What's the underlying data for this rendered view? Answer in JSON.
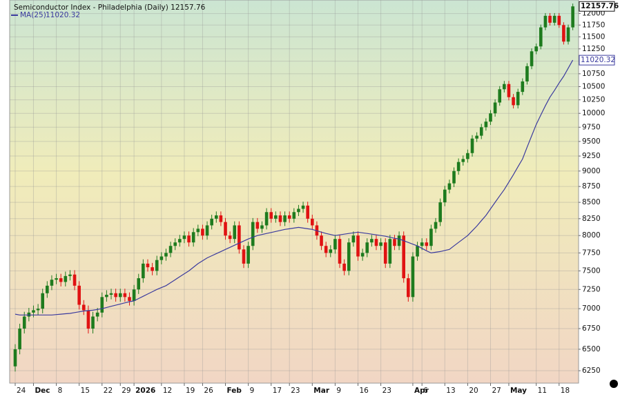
{
  "chart_data": {
    "type": "candlestick",
    "title": "Semiconductor Index - Philadelphia (Daily) 12157.76",
    "log_scale": true,
    "grid": true,
    "ylim": [
      6110,
      12300
    ],
    "yticks": [
      6250,
      6500,
      6750,
      7000,
      7250,
      7500,
      7750,
      8000,
      8250,
      8500,
      8750,
      9000,
      9250,
      9500,
      9750,
      10000,
      10250,
      10500,
      10750,
      11000,
      11250,
      11500,
      11750,
      12000
    ],
    "categories": [
      "24",
      null,
      null,
      null,
      "Dec",
      null,
      null,
      null,
      null,
      "8",
      null,
      null,
      null,
      null,
      "15",
      null,
      null,
      null,
      null,
      "22",
      null,
      null,
      null,
      "29",
      null,
      null,
      "2026",
      null,
      null,
      null,
      null,
      null,
      "12",
      null,
      null,
      null,
      null,
      "19",
      null,
      null,
      null,
      "26",
      null,
      null,
      null,
      null,
      "Feb",
      null,
      null,
      null,
      null,
      "9",
      null,
      null,
      null,
      null,
      "17",
      null,
      null,
      null,
      "23",
      null,
      null,
      null,
      null,
      "Mar",
      null,
      null,
      null,
      null,
      "9",
      null,
      null,
      null,
      null,
      "16",
      null,
      null,
      null,
      null,
      "23",
      null,
      null,
      null,
      null,
      null,
      null,
      "Apr",
      null,
      "6",
      null,
      null,
      null,
      null,
      "13",
      null,
      null,
      null,
      null,
      "20",
      null,
      null,
      null,
      null,
      "27",
      null,
      null,
      null,
      "May",
      null,
      null,
      null,
      null,
      null,
      "11",
      null,
      null,
      null,
      null,
      "18",
      null,
      null,
      null
    ],
    "month_labels": [
      "Dec",
      "2026",
      "Feb",
      "Mar",
      "Apr",
      "May"
    ],
    "up_color": "#1e7b1e",
    "down_color": "#e01212",
    "open": [
      6300,
      6500,
      6750,
      6900,
      6950,
      6980,
      7000,
      7200,
      7300,
      7380,
      7400,
      7350,
      7430,
      7450,
      7300,
      7050,
      6980,
      6750,
      6900,
      6950,
      7150,
      7180,
      7200,
      7150,
      7200,
      7150,
      7100,
      7250,
      7400,
      7600,
      7550,
      7500,
      7650,
      7700,
      7750,
      7850,
      7900,
      7950,
      8000,
      7900,
      8050,
      8100,
      8000,
      8150,
      8250,
      8300,
      8200,
      8000,
      7950,
      8150,
      7800,
      7600,
      7850,
      8200,
      8100,
      8150,
      8350,
      8250,
      8300,
      8200,
      8300,
      8250,
      8350,
      8400,
      8450,
      8250,
      8150,
      8000,
      7850,
      7750,
      7800,
      7950,
      7600,
      7500,
      7900,
      8000,
      7700,
      7750,
      7900,
      7950,
      7850,
      7900,
      7600,
      7950,
      7850,
      8000,
      7400,
      7150,
      7700,
      7850,
      7900,
      7850,
      8100,
      8200,
      8500,
      8700,
      8800,
      9000,
      9150,
      9200,
      9300,
      9550,
      9600,
      9750,
      9850,
      10000,
      10200,
      10450,
      10550,
      10300,
      10150,
      10400,
      10600,
      10900,
      11200,
      11300,
      11700,
      11950,
      11800,
      11950,
      11750,
      11400,
      11700
    ],
    "high": [
      6560,
      6810,
      6960,
      7010,
      7040,
      7060,
      7260,
      7360,
      7440,
      7460,
      7460,
      7490,
      7510,
      7510,
      7360,
      7110,
      7040,
      6960,
      7010,
      7210,
      7240,
      7260,
      7260,
      7260,
      7260,
      7210,
      7310,
      7460,
      7660,
      7660,
      7610,
      7710,
      7760,
      7810,
      7910,
      7960,
      8010,
      8060,
      8060,
      8110,
      8160,
      8160,
      8210,
      8310,
      8360,
      8360,
      8260,
      8060,
      8210,
      8210,
      7860,
      7910,
      8260,
      8260,
      8210,
      8410,
      8410,
      8360,
      8360,
      8360,
      8360,
      8410,
      8460,
      8510,
      8510,
      8310,
      8210,
      8060,
      7910,
      7860,
      8010,
      8010,
      7660,
      7960,
      8060,
      8060,
      7810,
      7960,
      8010,
      8010,
      7960,
      7960,
      8010,
      8010,
      8060,
      8060,
      7460,
      7760,
      7910,
      7960,
      7960,
      8160,
      8260,
      8560,
      8760,
      8860,
      9060,
      9210,
      9260,
      9360,
      9610,
      9660,
      9810,
      9910,
      10060,
      10260,
      10510,
      10610,
      10610,
      10360,
      10460,
      10660,
      10960,
      11260,
      11360,
      11760,
      12010,
      12010,
      12010,
      12010,
      11810,
      11760,
      12220
    ],
    "low": [
      6240,
      6440,
      6690,
      6840,
      6890,
      6920,
      6940,
      7140,
      7240,
      7320,
      7290,
      7290,
      7370,
      7240,
      6990,
      6920,
      6690,
      6690,
      6840,
      6890,
      7090,
      7120,
      7090,
      7090,
      7090,
      7040,
      7040,
      7190,
      7340,
      7490,
      7440,
      7440,
      7590,
      7640,
      7690,
      7790,
      7840,
      7890,
      7840,
      7840,
      7990,
      7940,
      7940,
      8090,
      8190,
      8140,
      7940,
      7890,
      7890,
      7740,
      7540,
      7540,
      7790,
      8040,
      8040,
      8090,
      8190,
      8190,
      8140,
      8140,
      8190,
      8190,
      8290,
      8340,
      8190,
      8090,
      7940,
      7790,
      7690,
      7690,
      7740,
      7540,
      7440,
      7440,
      7840,
      7640,
      7640,
      7690,
      7840,
      7790,
      7790,
      7540,
      7540,
      7790,
      7790,
      7340,
      7090,
      7090,
      7640,
      7790,
      7790,
      7790,
      8040,
      8140,
      8440,
      8640,
      8740,
      8940,
      9090,
      9140,
      9240,
      9490,
      9540,
      9690,
      9790,
      9940,
      10140,
      10390,
      10240,
      10090,
      10090,
      10340,
      10540,
      10840,
      11140,
      11240,
      11640,
      11740,
      11740,
      11690,
      11340,
      11340,
      11640
    ],
    "close": [
      6500,
      6750,
      6900,
      6950,
      6980,
      7000,
      7200,
      7300,
      7380,
      7400,
      7350,
      7430,
      7450,
      7300,
      7050,
      6980,
      6750,
      6900,
      6950,
      7150,
      7180,
      7200,
      7150,
      7200,
      7150,
      7100,
      7250,
      7400,
      7600,
      7550,
      7500,
      7650,
      7700,
      7750,
      7850,
      7900,
      7950,
      8000,
      7900,
      8050,
      8100,
      8000,
      8150,
      8250,
      8300,
      8200,
      8000,
      7950,
      8150,
      7800,
      7600,
      7850,
      8200,
      8100,
      8150,
      8350,
      8250,
      8300,
      8200,
      8300,
      8250,
      8350,
      8400,
      8450,
      8250,
      8150,
      8000,
      7850,
      7750,
      7800,
      7950,
      7600,
      7500,
      7900,
      8000,
      7700,
      7750,
      7900,
      7950,
      7850,
      7900,
      7600,
      7950,
      7850,
      8000,
      7400,
      7150,
      7700,
      7850,
      7900,
      7850,
      8100,
      8200,
      8500,
      8700,
      8800,
      9000,
      9150,
      9200,
      9300,
      9550,
      9600,
      9750,
      9850,
      10000,
      10200,
      10450,
      10550,
      10300,
      10150,
      10400,
      10600,
      10900,
      11200,
      11300,
      11700,
      11950,
      11800,
      11950,
      11750,
      11400,
      11700,
      12157.76
    ],
    "close_value_label": "12157.76",
    "series": [
      {
        "name": "MA(25)",
        "color": "#3a3a9e",
        "value_label": "11020.32",
        "values": [
          6930,
          6920,
          6920,
          6920,
          6920,
          6920,
          6920,
          6920,
          6920,
          6925,
          6930,
          6935,
          6940,
          6950,
          6960,
          6970,
          6975,
          6980,
          6990,
          7000,
          7015,
          7030,
          7045,
          7060,
          7075,
          7090,
          7100,
          7130,
          7160,
          7190,
          7220,
          7250,
          7275,
          7300,
          7340,
          7380,
          7420,
          7460,
          7500,
          7550,
          7600,
          7640,
          7680,
          7710,
          7740,
          7770,
          7800,
          7830,
          7860,
          7890,
          7920,
          7950,
          7975,
          8000,
          8015,
          8030,
          8045,
          8060,
          8075,
          8090,
          8100,
          8110,
          8120,
          8110,
          8100,
          8090,
          8070,
          8050,
          8030,
          8015,
          8000,
          8010,
          8020,
          8030,
          8040,
          8050,
          8040,
          8030,
          8020,
          8010,
          8000,
          7990,
          7975,
          7960,
          7950,
          7925,
          7900,
          7875,
          7850,
          7815,
          7780,
          7750,
          7760,
          7770,
          7785,
          7800,
          7850,
          7900,
          7950,
          8000,
          8070,
          8140,
          8220,
          8300,
          8400,
          8500,
          8600,
          8700,
          8820,
          8940,
          9070,
          9200,
          9400,
          9600,
          9800,
          9970,
          10140,
          10300,
          10430,
          10570,
          10700,
          10860,
          11020.32
        ]
      }
    ]
  }
}
